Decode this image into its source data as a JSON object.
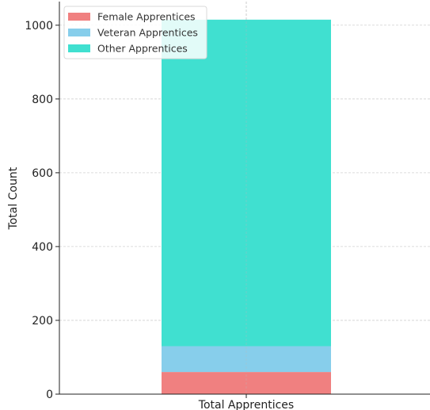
{
  "chart_data": {
    "type": "bar",
    "stacked": true,
    "categories": [
      "Total Apprentices"
    ],
    "series": [
      {
        "name": "Female Apprentices",
        "values": [
          60
        ],
        "color": "#f08080"
      },
      {
        "name": "Veteran Apprentices",
        "values": [
          70
        ],
        "color": "#87ceeb"
      },
      {
        "name": "Other Apprentices",
        "values": [
          885
        ],
        "color": "#40e0d0"
      }
    ],
    "title": "",
    "xlabel": "Total Apprentices",
    "ylabel": "Total Count",
    "ylim": [
      0,
      1064
    ],
    "yticks": [
      0,
      200,
      400,
      600,
      800,
      1000
    ],
    "grid": true,
    "legend_position": "top-left"
  }
}
